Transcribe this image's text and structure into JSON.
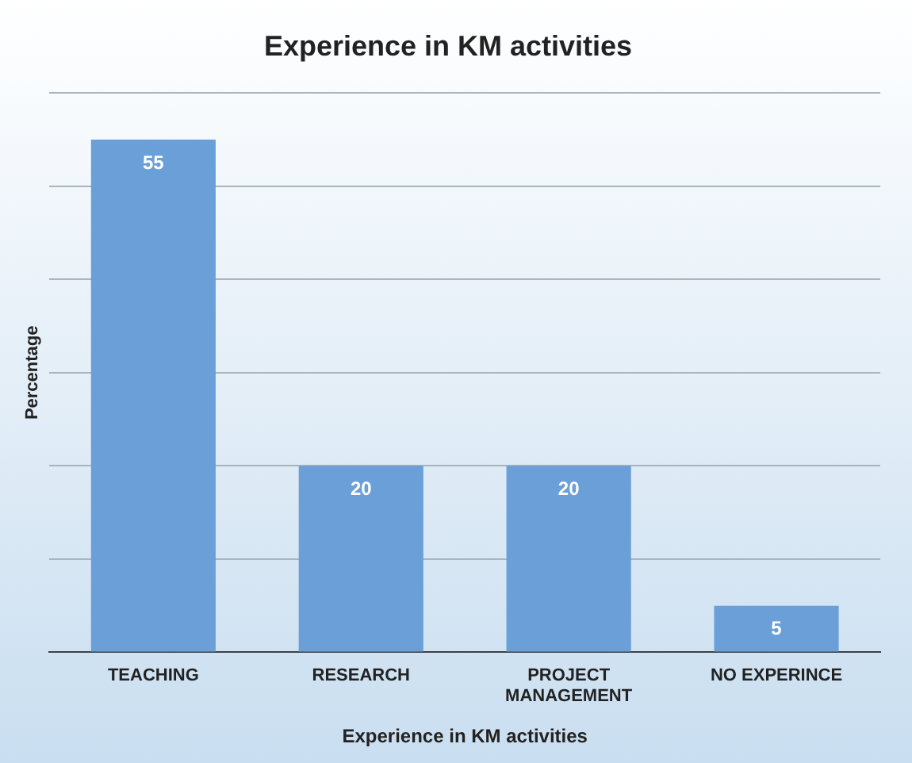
{
  "chart_data": {
    "type": "bar",
    "title": "Experience in KM activities",
    "xlabel": "Experience in KM activities",
    "ylabel": "Percentage",
    "categories": [
      "TEACHING",
      "RESEARCH",
      "PROJECT MANAGEMENT",
      "NO EXPERINCE"
    ],
    "values": [
      55,
      20,
      20,
      5
    ],
    "color": "#6a9fd8",
    "ylim": [
      0,
      60
    ],
    "yticks": [
      {
        "value": 0,
        "label": null
      },
      {
        "value": 10,
        "label": null
      },
      {
        "value": 20,
        "label": null
      },
      {
        "value": 30,
        "label": null
      },
      {
        "value": 40,
        "label": null
      },
      {
        "value": 50,
        "label": null
      },
      {
        "value": 60,
        "label": null
      }
    ],
    "tick_labels": "x",
    "grid": "y",
    "data_labels": true
  }
}
